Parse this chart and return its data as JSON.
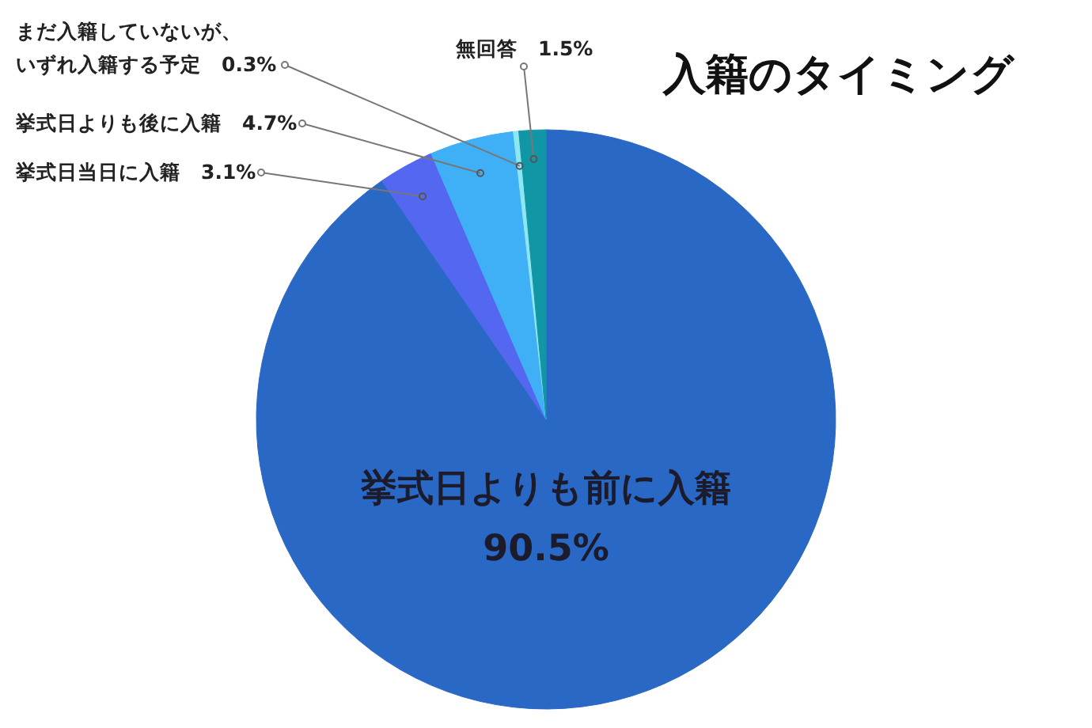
{
  "chart_data": {
    "type": "pie",
    "title": "入籍のタイミング",
    "categories": [
      "挙式日よりも前に入籍",
      "挙式日当日に入籍",
      "挙式日よりも後に入籍",
      "まだ入籍していないが、いずれ入籍する予定",
      "無回答"
    ],
    "values": [
      90.5,
      3.1,
      4.7,
      0.3,
      1.5
    ],
    "value_labels": [
      "90.5%",
      "3.1%",
      "4.7%",
      "0.3%",
      "1.5%"
    ],
    "colors": [
      "#2a68c6",
      "#5467f0",
      "#3fb0f5",
      "#8ee6f0",
      "#1196a6"
    ]
  }
}
